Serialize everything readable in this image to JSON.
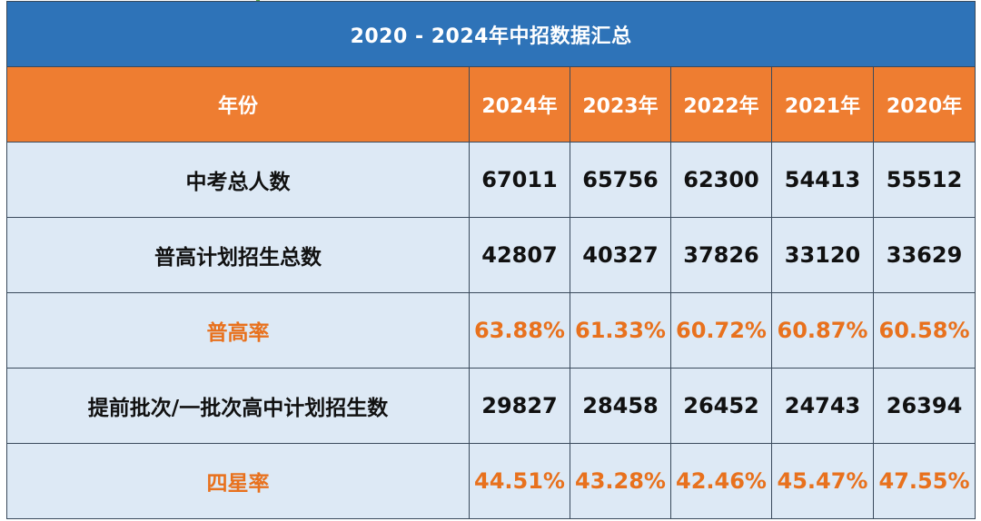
{
  "title": "2020 - 2024年中招数据汇总",
  "header": {
    "label": "年份",
    "years": [
      "2024年",
      "2023年",
      "2022年",
      "2021年",
      "2020年"
    ]
  },
  "rows": [
    {
      "label": "中考总人数",
      "values": [
        "67011",
        "65756",
        "62300",
        "54413",
        "55512"
      ],
      "highlight": false
    },
    {
      "label": "普高计划招生总数",
      "values": [
        "42807",
        "40327",
        "37826",
        "33120",
        "33629"
      ],
      "highlight": false
    },
    {
      "label": "普高率",
      "values": [
        "63.88%",
        "61.33%",
        "60.72%",
        "60.87%",
        "60.58%"
      ],
      "highlight": true
    },
    {
      "label": "提前批次/一批次高中计划招生数",
      "values": [
        "29827",
        "28458",
        "26452",
        "24743",
        "26394"
      ],
      "highlight": false
    },
    {
      "label": "四星率",
      "values": [
        "44.51%",
        "43.28%",
        "42.46%",
        "45.47%",
        "47.55%"
      ],
      "highlight": true
    }
  ],
  "colors": {
    "title_bg": "#2e73b8",
    "header_bg": "#ee7d31",
    "body_bg": "#dde9f5",
    "highlight_text": "#e8711d"
  }
}
